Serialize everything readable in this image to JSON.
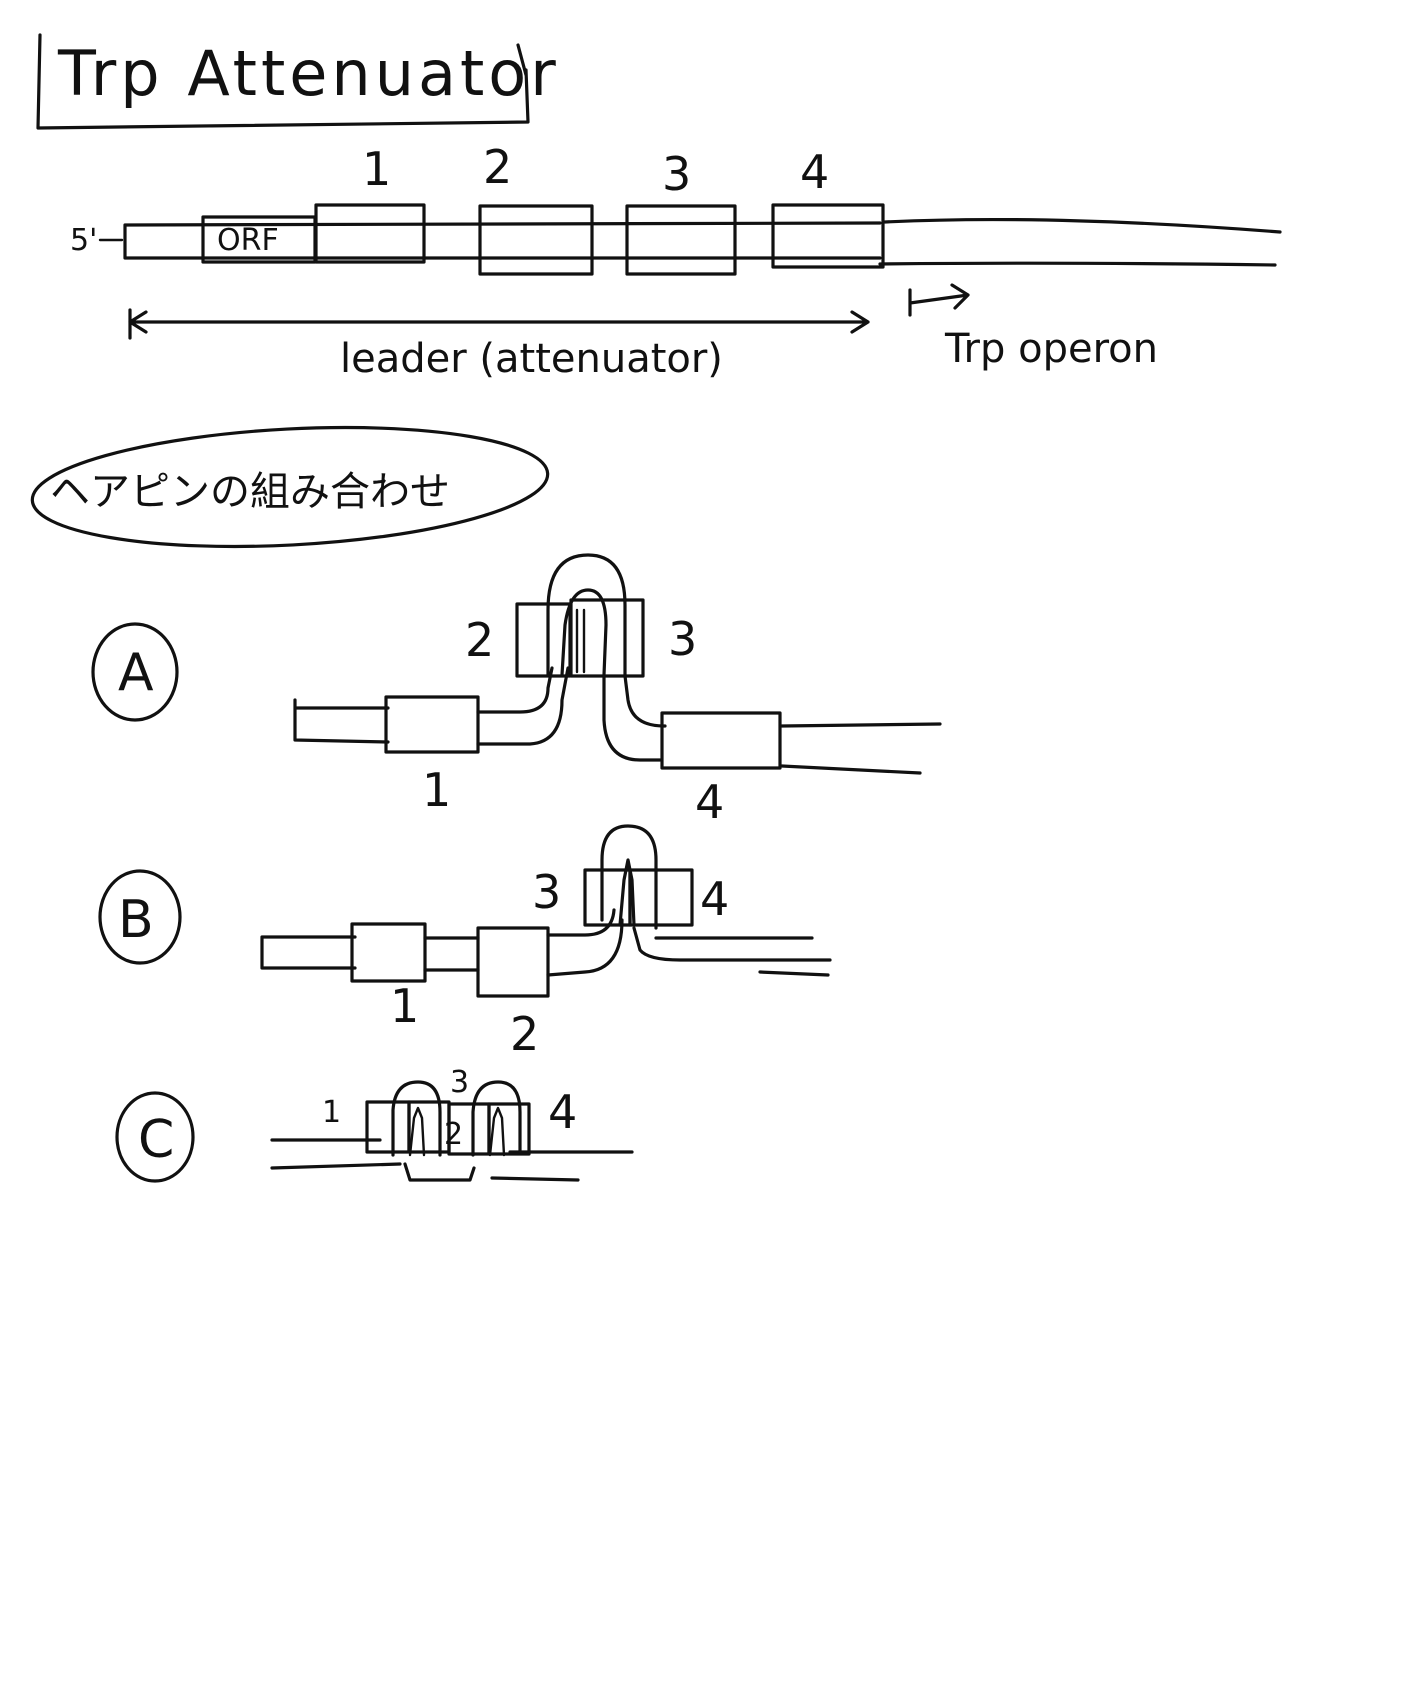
{
  "title": "Trp Attenuator",
  "leader_map": {
    "five_prime": "5'",
    "orf_label": "ORF",
    "region_numbers": [
      "1",
      "2",
      "3",
      "4"
    ],
    "leader_label": "leader (attenuator)",
    "operon_label": "Trp operon"
  },
  "hairpin_header": "ヘアピンの組み合わせ",
  "combos": [
    {
      "letter": "A",
      "labels": {
        "r1": "1",
        "r2": "2",
        "r3": "3",
        "r4": "4"
      }
    },
    {
      "letter": "B",
      "labels": {
        "r1": "1",
        "r2": "2",
        "r3": "3",
        "r4": "4"
      }
    },
    {
      "letter": "C",
      "labels": {
        "r1": "1",
        "r2": "2",
        "r3": "3",
        "r4": "4"
      }
    }
  ],
  "colors": {
    "ink": "#111111",
    "paper": "#ffffff"
  }
}
